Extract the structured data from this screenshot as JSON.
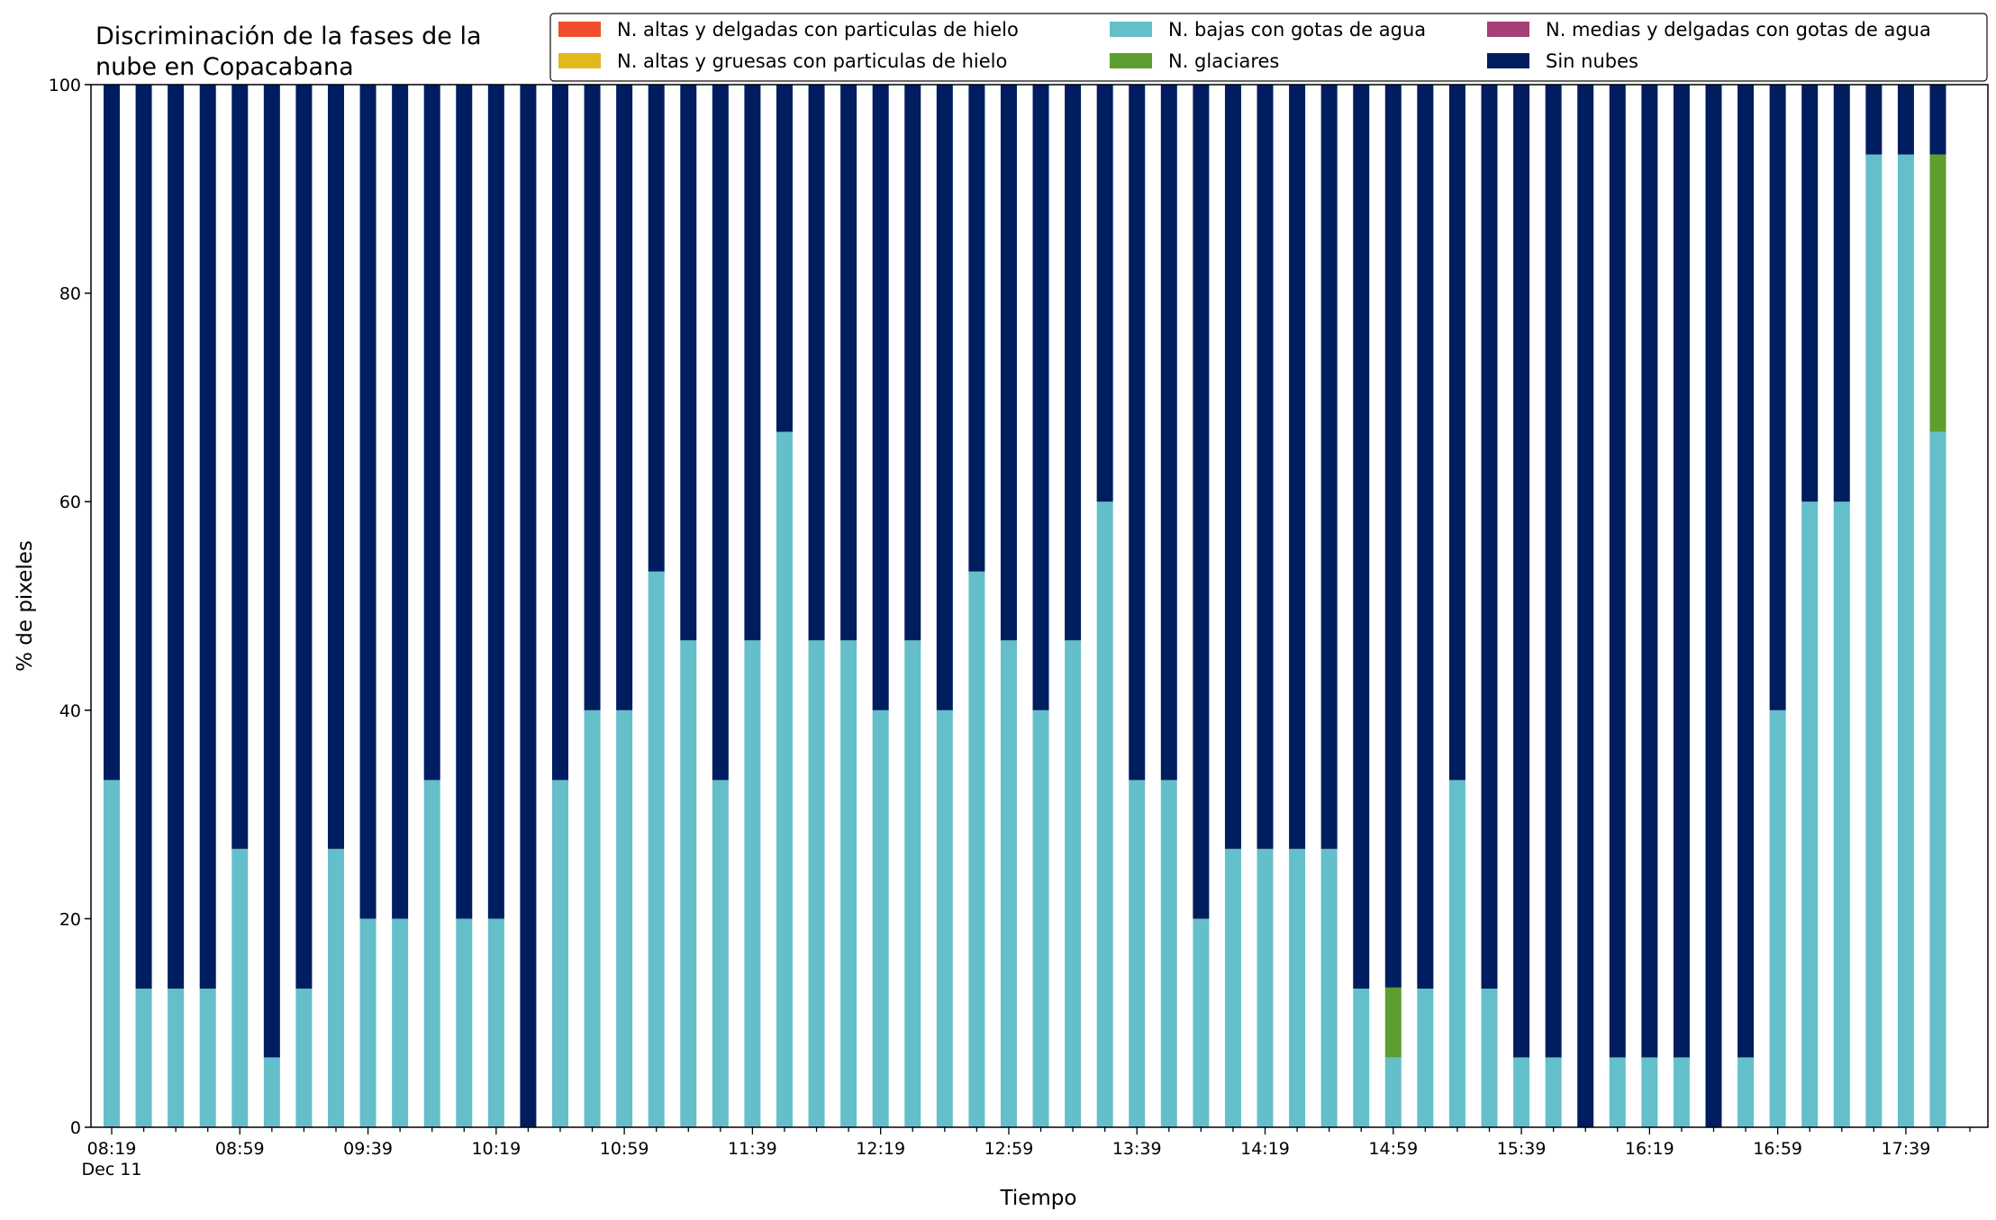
{
  "chart_data": {
    "type": "bar",
    "stacked": true,
    "title_lines": [
      "Discriminación de la fases de la",
      "nube en Copacabana"
    ],
    "xlabel": "Tiempo",
    "ylabel": "% de pixeles",
    "ylim": [
      0,
      100
    ],
    "yticks": [
      0,
      20,
      40,
      60,
      80,
      100
    ],
    "x_start": "08:19",
    "x_step_minutes": 10,
    "x_major_labels": [
      "08:19",
      "08:59",
      "09:39",
      "10:19",
      "10:59",
      "11:39",
      "12:19",
      "12:59",
      "13:39",
      "14:19",
      "14:59",
      "15:39",
      "16:19",
      "16:59",
      "17:39"
    ],
    "x_first_sublabel": "Dec 11",
    "grid": false,
    "legend_position": "top-right",
    "series": [
      {
        "name": "N. altas y delgadas con particulas de hielo",
        "color": "#f04e2c",
        "values": [
          0,
          0,
          0,
          0,
          0,
          0,
          0,
          0,
          0,
          0,
          0,
          0,
          0,
          0,
          0,
          0,
          0,
          0,
          0,
          0,
          0,
          0,
          0,
          0,
          0,
          0,
          0,
          0,
          0,
          0,
          0,
          0,
          0,
          0,
          0,
          0,
          0,
          0,
          0,
          0,
          0,
          0,
          0,
          0,
          0,
          0,
          0,
          0,
          0,
          0,
          0,
          0,
          0,
          0,
          0,
          0,
          0,
          0
        ]
      },
      {
        "name": "N. altas y gruesas con particulas de hielo",
        "color": "#e3b81e",
        "values": [
          0,
          0,
          0,
          0,
          0,
          0,
          0,
          0,
          0,
          0,
          0,
          0,
          0,
          0,
          0,
          0,
          0,
          0,
          0,
          0,
          0,
          0,
          0,
          0,
          0,
          0,
          0,
          0,
          0,
          0,
          0,
          0,
          0,
          0,
          0,
          0,
          0,
          0,
          0,
          0,
          0,
          0,
          0,
          0,
          0,
          0,
          0,
          0,
          0,
          0,
          0,
          0,
          0,
          0,
          0,
          0,
          0,
          0
        ]
      },
      {
        "name": "N. bajas con gotas de agua",
        "color": "#65bfca",
        "values": [
          33.3,
          13.3,
          13.3,
          13.3,
          26.7,
          6.7,
          13.3,
          26.7,
          20,
          20,
          33.3,
          20,
          20,
          0,
          33.3,
          40,
          40,
          53.3,
          46.7,
          33.3,
          46.7,
          66.7,
          46.7,
          46.7,
          40,
          46.7,
          40,
          53.3,
          46.7,
          40,
          46.7,
          60,
          33.3,
          33.3,
          20,
          26.7,
          26.7,
          26.7,
          26.7,
          13.3,
          6.7,
          13.3,
          33.3,
          13.3,
          6.7,
          6.7,
          0,
          6.7,
          6.7,
          6.7,
          0,
          6.7,
          40,
          60,
          60,
          93.3,
          93.3,
          66.7
        ]
      },
      {
        "name": "N. glaciares",
        "color": "#5c9f2e",
        "values": [
          0,
          0,
          0,
          0,
          0,
          0,
          0,
          0,
          0,
          0,
          0,
          0,
          0,
          0,
          0,
          0,
          0,
          0,
          0,
          0,
          0,
          0,
          0,
          0,
          0,
          0,
          0,
          0,
          0,
          0,
          0,
          0,
          0,
          0,
          0,
          0,
          0,
          0,
          0,
          0,
          6.7,
          0,
          0,
          0,
          0,
          0,
          0,
          0,
          0,
          0,
          0,
          0,
          0,
          0,
          0,
          0,
          0,
          26.6
        ]
      },
      {
        "name": "N. medias y delgadas con gotas de agua",
        "color": "#a43f77",
        "values": [
          0,
          0,
          0,
          0,
          0,
          0,
          0,
          0,
          0,
          0,
          0,
          0,
          0,
          0,
          0,
          0,
          0,
          0,
          0,
          0,
          0,
          0,
          0,
          0,
          0,
          0,
          0,
          0,
          0,
          0,
          0,
          0,
          0,
          0,
          0,
          0,
          0,
          0,
          0,
          0,
          0,
          0,
          0,
          0,
          0,
          0,
          0,
          0,
          0,
          0,
          0,
          0,
          0,
          0,
          0,
          0,
          0,
          0
        ]
      },
      {
        "name": "Sin nubes",
        "color": "#001d5f",
        "values": [
          66.7,
          86.7,
          86.7,
          86.7,
          73.3,
          93.3,
          86.7,
          73.3,
          80,
          80,
          66.7,
          80,
          80,
          100,
          66.7,
          60,
          60,
          46.7,
          53.3,
          66.7,
          53.3,
          33.3,
          53.3,
          53.3,
          60,
          53.3,
          60,
          46.7,
          53.3,
          60,
          53.3,
          40,
          66.7,
          66.7,
          80,
          73.3,
          73.3,
          73.3,
          73.3,
          86.7,
          86.6,
          86.7,
          66.7,
          86.7,
          93.3,
          93.3,
          100,
          93.3,
          93.3,
          93.3,
          100,
          93.3,
          60,
          40,
          40,
          6.7,
          6.7,
          6.7
        ]
      }
    ],
    "legend_columns": [
      [
        "N. altas y delgadas con particulas de hielo",
        "N. altas y gruesas con particulas de hielo"
      ],
      [
        "N. bajas con gotas de agua",
        "N. glaciares"
      ],
      [
        "N. medias y delgadas con gotas de agua",
        "Sin nubes"
      ]
    ]
  }
}
